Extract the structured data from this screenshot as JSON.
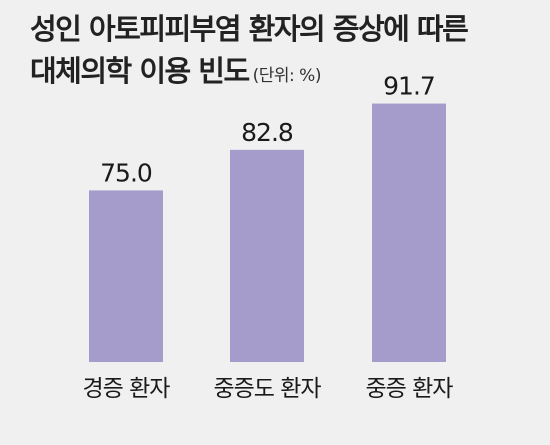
{
  "title": "성인 아토피피부염 환자의 증상에 따른",
  "title_line2": "대체의학 이용 빈도",
  "unit": "(단위: %)",
  "chart_data": {
    "type": "bar",
    "title": "성인 아토피피부염 환자의 증상에 따른 대체의학 이용 빈도",
    "unit": "(단위: %)",
    "categories": [
      "경증 환자",
      "중증도 환자",
      "중증 환자"
    ],
    "values": [
      75.0,
      82.8,
      91.7
    ],
    "value_labels": [
      "75.0",
      "82.8",
      "91.7"
    ],
    "bar_color": "#a59ccc",
    "background": "#f0f0f0",
    "grid": false,
    "legend": "none"
  }
}
